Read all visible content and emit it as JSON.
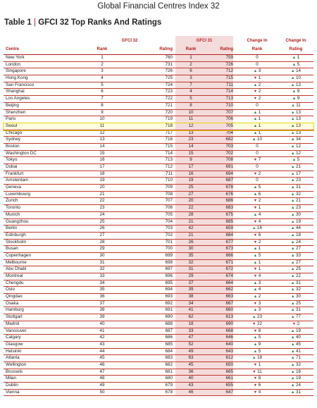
{
  "document": {
    "title": "Global Financial Centres Index 32",
    "caption_prefix": "Table 1",
    "caption_sep": "|",
    "caption_text": "GFCI 32 Top Ranks And Ratings"
  },
  "headers": {
    "centre": "Centre",
    "gfci32": "GFCI 32",
    "gfci31": "GFCI 31",
    "change_in_1": "Change In",
    "change_in_2": "Change In",
    "rank": "Rank",
    "rating": "Rating",
    "rank2": "Rank",
    "rating2": "Rating",
    "rank3": "Rank",
    "rating3": "Rating"
  },
  "highlight_color": "#e8d800",
  "accent_color": "#b31b1b",
  "up_color": "#1e8a3a",
  "down_color": "#c0262d",
  "rows": [
    {
      "centre": "New York",
      "r32": "1",
      "t32": "760",
      "r31": "1",
      "t31": "759",
      "cr": "0",
      "crd": "",
      "ct": "1",
      "ctd": "up"
    },
    {
      "centre": "London",
      "r32": "2",
      "t32": "731",
      "r31": "2",
      "t31": "726",
      "cr": "0",
      "crd": "",
      "ct": "5",
      "ctd": "up"
    },
    {
      "centre": "Singapore",
      "r32": "3",
      "t32": "726",
      "r31": "6",
      "t31": "712",
      "cr": "3",
      "crd": "up",
      "ct": "14",
      "ctd": "up"
    },
    {
      "centre": "Hong Kong",
      "r32": "4",
      "t32": "725",
      "r31": "3",
      "t31": "715",
      "cr": "1",
      "crd": "down",
      "ct": "10",
      "ctd": "up"
    },
    {
      "centre": "San Francisco",
      "r32": "5",
      "t32": "724",
      "r31": "7",
      "t31": "711",
      "cr": "2",
      "crd": "up",
      "ct": "13",
      "ctd": "up"
    },
    {
      "centre": "Shanghai",
      "r32": "6",
      "t32": "723",
      "r31": "4",
      "t31": "714",
      "cr": "2",
      "crd": "down",
      "ct": "9",
      "ctd": "up"
    },
    {
      "centre": "Los Angeles",
      "r32": "7",
      "t32": "722",
      "r31": "5",
      "t31": "713",
      "cr": "2",
      "crd": "down",
      "ct": "9",
      "ctd": "up"
    },
    {
      "centre": "Beijing",
      "r32": "8",
      "t32": "721",
      "r31": "8",
      "t31": "710",
      "cr": "0",
      "crd": "",
      "ct": "11",
      "ctd": "up"
    },
    {
      "centre": "Shenzhen",
      "r32": "9",
      "t32": "720",
      "r31": "10",
      "t31": "707",
      "cr": "1",
      "crd": "up",
      "ct": "13",
      "ctd": "up"
    },
    {
      "centre": "Paris",
      "r32": "10",
      "t32": "719",
      "r31": "11",
      "t31": "706",
      "cr": "1",
      "crd": "up",
      "ct": "13",
      "ctd": "up"
    },
    {
      "centre": "Seoul",
      "r32": "11",
      "t32": "718",
      "r31": "12",
      "t31": "705",
      "cr": "1",
      "crd": "up",
      "ct": "13",
      "ctd": "up",
      "hl": true
    },
    {
      "centre": "Chicago",
      "r32": "12",
      "t32": "717",
      "r31": "13",
      "t31": "704",
      "cr": "1",
      "crd": "up",
      "ct": "13",
      "ctd": "up"
    },
    {
      "centre": "Sydney",
      "r32": "13",
      "t32": "716",
      "r31": "23",
      "t31": "682",
      "cr": "10",
      "crd": "up",
      "ct": "34",
      "ctd": "up"
    },
    {
      "centre": "Boston",
      "r32": "14",
      "t32": "715",
      "r31": "14",
      "t31": "703",
      "cr": "0",
      "crd": "",
      "ct": "12",
      "ctd": "up"
    },
    {
      "centre": "Washington DC",
      "r32": "15",
      "t32": "714",
      "r31": "15",
      "t31": "702",
      "cr": "0",
      "crd": "",
      "ct": "12",
      "ctd": "up"
    },
    {
      "centre": "Tokyo",
      "r32": "16",
      "t32": "713",
      "r31": "9",
      "t31": "708",
      "cr": "7",
      "crd": "down",
      "ct": "5",
      "ctd": "up"
    },
    {
      "centre": "Dubai",
      "r32": "17",
      "t32": "712",
      "r31": "17",
      "t31": "691",
      "cr": "0",
      "crd": "",
      "ct": "21",
      "ctd": "up"
    },
    {
      "centre": "Frankfurt",
      "r32": "18",
      "t32": "711",
      "r31": "16",
      "t31": "694",
      "cr": "2",
      "crd": "down",
      "ct": "17",
      "ctd": "up"
    },
    {
      "centre": "Amsterdam",
      "r32": "19",
      "t32": "710",
      "r31": "19",
      "t31": "687",
      "cr": "0",
      "crd": "",
      "ct": "23",
      "ctd": "up"
    },
    {
      "centre": "Geneva",
      "r32": "20",
      "t32": "709",
      "r31": "25",
      "t31": "678",
      "cr": "5",
      "crd": "up",
      "ct": "31",
      "ctd": "up"
    },
    {
      "centre": "Luxembourg",
      "r32": "21",
      "t32": "708",
      "r31": "27",
      "t31": "676",
      "cr": "6",
      "crd": "up",
      "ct": "32",
      "ctd": "up"
    },
    {
      "centre": "Zurich",
      "r32": "22",
      "t32": "707",
      "r31": "20",
      "t31": "686",
      "cr": "2",
      "crd": "down",
      "ct": "21",
      "ctd": "up"
    },
    {
      "centre": "Toronto",
      "r32": "23",
      "t32": "706",
      "r31": "22",
      "t31": "683",
      "cr": "1",
      "crd": "down",
      "ct": "23",
      "ctd": "up"
    },
    {
      "centre": "Munich",
      "r32": "24",
      "t32": "705",
      "r31": "28",
      "t31": "675",
      "cr": "4",
      "crd": "up",
      "ct": "30",
      "ctd": "up"
    },
    {
      "centre": "Guangzhou",
      "r32": "25",
      "t32": "704",
      "r31": "21",
      "t31": "685",
      "cr": "4",
      "crd": "down",
      "ct": "19",
      "ctd": "up"
    },
    {
      "centre": "Berlin",
      "r32": "26",
      "t32": "703",
      "r31": "42",
      "t31": "659",
      "cr": "16",
      "crd": "up",
      "ct": "44",
      "ctd": "up"
    },
    {
      "centre": "Edinburgh",
      "r32": "27",
      "t32": "702",
      "r31": "21",
      "t31": "684",
      "cr": "6",
      "crd": "down",
      "ct": "18",
      "ctd": "up"
    },
    {
      "centre": "Stockholm",
      "r32": "28",
      "t32": "701",
      "r31": "26",
      "t31": "677",
      "cr": "2",
      "crd": "down",
      "ct": "24",
      "ctd": "up"
    },
    {
      "centre": "Busan",
      "r32": "29",
      "t32": "700",
      "r31": "30",
      "t31": "673",
      "cr": "1",
      "crd": "up",
      "ct": "27",
      "ctd": "up"
    },
    {
      "centre": "Copenhagen",
      "r32": "30",
      "t32": "699",
      "r31": "35",
      "t31": "666",
      "cr": "5",
      "crd": "up",
      "ct": "33",
      "ctd": "up"
    },
    {
      "centre": "Melbourne",
      "r32": "31",
      "t32": "698",
      "r31": "32",
      "t31": "671",
      "cr": "1",
      "crd": "up",
      "ct": "27",
      "ctd": "up"
    },
    {
      "centre": "Abu Dhabi",
      "r32": "32",
      "t32": "697",
      "r31": "31",
      "t31": "672",
      "cr": "1",
      "crd": "down",
      "ct": "25",
      "ctd": "up"
    },
    {
      "centre": "Montreal",
      "r32": "33",
      "t32": "696",
      "r31": "29",
      "t31": "674",
      "cr": "4",
      "crd": "down",
      "ct": "22",
      "ctd": "up"
    },
    {
      "centre": "Chengdu",
      "r32": "34",
      "t32": "695",
      "r31": "37",
      "t31": "664",
      "cr": "3",
      "crd": "up",
      "ct": "31",
      "ctd": "up"
    },
    {
      "centre": "Oslo",
      "r32": "35",
      "t32": "694",
      "r31": "39",
      "t31": "662",
      "cr": "4",
      "crd": "up",
      "ct": "32",
      "ctd": "up"
    },
    {
      "centre": "Qingdao",
      "r32": "36",
      "t32": "693",
      "r31": "38",
      "t31": "663",
      "cr": "2",
      "crd": "up",
      "ct": "30",
      "ctd": "up"
    },
    {
      "centre": "Osaka",
      "r32": "37",
      "t32": "692",
      "r31": "34",
      "t31": "667",
      "cr": "3",
      "crd": "down",
      "ct": "25",
      "ctd": "up"
    },
    {
      "centre": "Hamburg",
      "r32": "38",
      "t32": "691",
      "r31": "41",
      "t31": "660",
      "cr": "3",
      "crd": "up",
      "ct": "31",
      "ctd": "up"
    },
    {
      "centre": "Stuttgart",
      "r32": "39",
      "t32": "690",
      "r31": "62",
      "t31": "613",
      "cr": "23",
      "crd": "up",
      "ct": "77",
      "ctd": "up"
    },
    {
      "centre": "Madrid",
      "r32": "40",
      "t32": "688",
      "r31": "18",
      "t31": "690",
      "cr": "22",
      "crd": "down",
      "ct": "2",
      "ctd": "down"
    },
    {
      "centre": "Vancouver",
      "r32": "41",
      "t32": "687",
      "r31": "33",
      "t31": "668",
      "cr": "8",
      "crd": "down",
      "ct": "19",
      "ctd": "up"
    },
    {
      "centre": "Calgary",
      "r32": "42",
      "t32": "686",
      "r31": "47",
      "t31": "646",
      "cr": "5",
      "crd": "up",
      "ct": "40",
      "ctd": "up"
    },
    {
      "centre": "Glasgow",
      "r32": "43",
      "t32": "685",
      "r31": "52",
      "t31": "640",
      "cr": "9",
      "crd": "up",
      "ct": "45",
      "ctd": "up"
    },
    {
      "centre": "Helsinki",
      "r32": "44",
      "t32": "684",
      "r31": "49",
      "t31": "643",
      "cr": "5",
      "crd": "up",
      "ct": "41",
      "ctd": "up"
    },
    {
      "centre": "Atlanta",
      "r32": "45",
      "t32": "683",
      "r31": "63",
      "t31": "612",
      "cr": "18",
      "crd": "up",
      "ct": "71",
      "ctd": "up"
    },
    {
      "centre": "Wellington",
      "r32": "46",
      "t32": "682",
      "r31": "45",
      "t31": "650",
      "cr": "1",
      "crd": "down",
      "ct": "32",
      "ctd": "up"
    },
    {
      "centre": "Brussels",
      "r32": "47",
      "t32": "681",
      "r31": "36",
      "t31": "665",
      "cr": "11",
      "crd": "down",
      "ct": "16",
      "ctd": "up"
    },
    {
      "centre": "Milan",
      "r32": "48",
      "t32": "680",
      "r31": "40",
      "t31": "661",
      "cr": "8",
      "crd": "down",
      "ct": "19",
      "ctd": "up"
    },
    {
      "centre": "Dublin",
      "r32": "49",
      "t32": "679",
      "r31": "43",
      "t31": "655",
      "cr": "6",
      "crd": "down",
      "ct": "24",
      "ctd": "up"
    },
    {
      "centre": "Vienna",
      "r32": "50",
      "t32": "678",
      "r31": "46",
      "t31": "647",
      "cr": "4",
      "crd": "down",
      "ct": "31",
      "ctd": "up"
    }
  ]
}
